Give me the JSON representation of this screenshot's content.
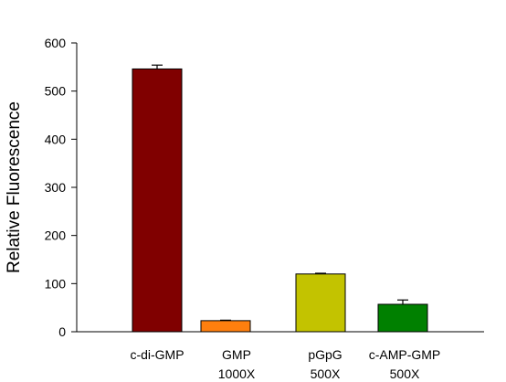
{
  "chart_data": {
    "type": "bar",
    "title": "",
    "xlabel": "",
    "ylabel": "Relative Fluorescence",
    "ylim": [
      0,
      600
    ],
    "yticks": [
      0,
      100,
      200,
      300,
      400,
      500,
      600
    ],
    "grid": false,
    "categories": [
      {
        "lines": [
          "c-di-GMP"
        ]
      },
      {
        "lines": [
          "GMP",
          "1000X"
        ]
      },
      {
        "lines": [
          "pGpG",
          "500X"
        ]
      },
      {
        "lines": [
          "c-AMP-GMP",
          "500X"
        ]
      }
    ],
    "series": [
      {
        "values": [
          546,
          23,
          120,
          57
        ],
        "errors": [
          8,
          1,
          1.5,
          9
        ],
        "colors": [
          "#800000",
          "#ff7f0e",
          "#c3c300",
          "#008000"
        ]
      }
    ]
  }
}
